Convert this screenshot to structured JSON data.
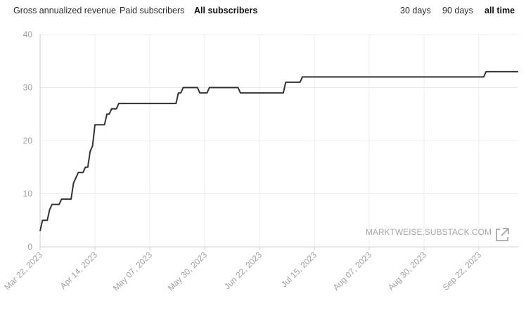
{
  "metric_tabs": [
    {
      "label": "Gross annualized revenue",
      "active": false
    },
    {
      "label": "Paid subscribers",
      "active": false
    },
    {
      "label": "All subscribers",
      "active": true
    }
  ],
  "range_tabs": [
    {
      "label": "30 days",
      "active": false
    },
    {
      "label": "90 days",
      "active": false
    },
    {
      "label": "all time",
      "active": true
    }
  ],
  "watermark": "MARKTWEISE.SUBSTACK.COM",
  "colors": {
    "line": "#333333",
    "grid": "#ececec",
    "axis": "#d0d0d0",
    "tick_text": "#a0a0a0"
  },
  "chart_data": {
    "type": "line",
    "title": "",
    "xlabel": "",
    "ylabel": "",
    "ylim": [
      0,
      40
    ],
    "yticks": [
      0,
      10,
      20,
      30,
      40
    ],
    "xticks": [
      "Mar 22, 2023",
      "Apr 14, 2023",
      "May 07, 2023",
      "May 30, 2023",
      "Jun 22, 2023",
      "Jul 15, 2023",
      "Aug 07, 2023",
      "Aug 30, 2023",
      "Sep 22, 2023"
    ],
    "grid": true,
    "series": [
      {
        "name": "",
        "points": [
          [
            "2023-03-22",
            3
          ],
          [
            "2023-03-23",
            5
          ],
          [
            "2023-03-25",
            5
          ],
          [
            "2023-03-26",
            7
          ],
          [
            "2023-03-27",
            8
          ],
          [
            "2023-03-30",
            8
          ],
          [
            "2023-03-31",
            9
          ],
          [
            "2023-04-04",
            9
          ],
          [
            "2023-04-05",
            12
          ],
          [
            "2023-04-07",
            14
          ],
          [
            "2023-04-09",
            14
          ],
          [
            "2023-04-10",
            15
          ],
          [
            "2023-04-11",
            15
          ],
          [
            "2023-04-12",
            18
          ],
          [
            "2023-04-13",
            19
          ],
          [
            "2023-04-14",
            23
          ],
          [
            "2023-04-18",
            23
          ],
          [
            "2023-04-19",
            25
          ],
          [
            "2023-04-20",
            25
          ],
          [
            "2023-04-21",
            26
          ],
          [
            "2023-04-23",
            26
          ],
          [
            "2023-04-24",
            27
          ],
          [
            "2023-05-18",
            27
          ],
          [
            "2023-05-19",
            29
          ],
          [
            "2023-05-20",
            29
          ],
          [
            "2023-05-21",
            30
          ],
          [
            "2023-05-27",
            30
          ],
          [
            "2023-05-28",
            29
          ],
          [
            "2023-05-31",
            29
          ],
          [
            "2023-06-01",
            30
          ],
          [
            "2023-06-13",
            30
          ],
          [
            "2023-06-14",
            29
          ],
          [
            "2023-07-02",
            29
          ],
          [
            "2023-07-03",
            31
          ],
          [
            "2023-07-09",
            31
          ],
          [
            "2023-07-10",
            32
          ],
          [
            "2023-09-24",
            32
          ],
          [
            "2023-09-25",
            33
          ],
          [
            "2023-10-20",
            33
          ]
        ]
      }
    ]
  }
}
